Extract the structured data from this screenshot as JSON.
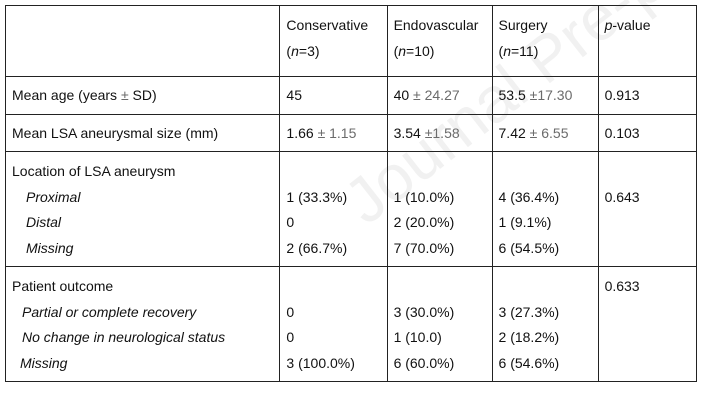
{
  "watermark": "Journal Pre-proof",
  "header": {
    "col0": "",
    "conservative": {
      "label": "Conservative",
      "n_prefix": "(",
      "n_var": "n",
      "n_value": "=3)"
    },
    "endovascular": {
      "label": "Endovascular",
      "n_prefix": "(",
      "n_var": "n",
      "n_value": "=10)"
    },
    "surgery": {
      "label": "Surgery",
      "n_prefix": "(",
      "n_var": "n",
      "n_value": "=11)"
    },
    "pvalue": {
      "p": "p",
      "rest": "-value"
    }
  },
  "rows": {
    "age": {
      "label_main": "Mean age (years ",
      "label_pm": "±",
      "label_sd": " SD)",
      "conservative": "45",
      "endo_mean": "40 ",
      "endo_sd": "± 24.27",
      "surg_mean": "53.5 ",
      "surg_sd": "±17.30",
      "p": "0.913"
    },
    "size": {
      "label": "Mean LSA aneurysmal size (mm)",
      "cons_mean": "1.66 ",
      "cons_sd": "± 1.15",
      "endo_mean": "3.54 ",
      "endo_sd": "±1.58",
      "surg_mean": "7.42 ",
      "surg_sd": "± 6.55",
      "p": "0.103"
    },
    "location": {
      "title": "Location of LSA aneurysm",
      "items": [
        {
          "label": "Proximal",
          "conservative": "1 (33.3%)",
          "endovascular": "1 (10.0%)",
          "surgery": "4 (36.4%)"
        },
        {
          "label": "Distal",
          "conservative": "0",
          "endovascular": "2 (20.0%)",
          "surgery": "1 (9.1%)"
        },
        {
          "label": "Missing",
          "conservative": "2 (66.7%)",
          "endovascular": "7 (70.0%)",
          "surgery": "6 (54.5%)"
        }
      ],
      "p": "0.643"
    },
    "outcome": {
      "title": "Patient outcome",
      "items": [
        {
          "label": "Partial or complete recovery",
          "conservative": "0",
          "endovascular": "3 (30.0%)",
          "surgery": "3 (27.3%)"
        },
        {
          "label": "No change in neurological status",
          "conservative": "0",
          "endovascular": "1 (10.0)",
          "surgery": "2 (18.2%)"
        },
        {
          "label": "Missing",
          "conservative": "3 (100.0%)",
          "endovascular": "6 (60.0%)",
          "surgery": "6 (54.6%)"
        }
      ],
      "p": "0.633"
    }
  }
}
